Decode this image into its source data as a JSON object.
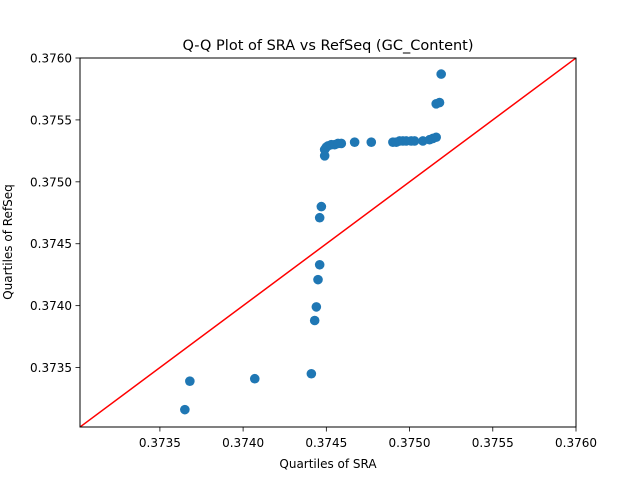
{
  "chart_data": {
    "type": "scatter",
    "title": "Q-Q Plot of SRA vs RefSeq (GC_Content)",
    "xlabel": "Quartiles of SRA",
    "ylabel": "Quartiles of RefSeq",
    "xlim": [
      0.37302,
      0.376
    ],
    "ylim": [
      0.37302,
      0.376
    ],
    "xticks": [
      0.3735,
      0.374,
      0.3745,
      0.375,
      0.3755,
      0.376
    ],
    "xtick_labels": [
      "0.3735",
      "0.3740",
      "0.3745",
      "0.3750",
      "0.3755",
      "0.3760"
    ],
    "yticks": [
      0.3735,
      0.374,
      0.3745,
      0.375,
      0.3755,
      0.376
    ],
    "ytick_labels": [
      "0.3735",
      "0.3740",
      "0.3745",
      "0.3750",
      "0.3755",
      "0.3760"
    ],
    "grid": false,
    "series": [
      {
        "color": "#1f77b4",
        "points": [
          [
            0.37365,
            0.37316
          ],
          [
            0.37368,
            0.37339
          ],
          [
            0.37407,
            0.37341
          ],
          [
            0.37441,
            0.37345
          ],
          [
            0.37443,
            0.37388
          ],
          [
            0.37444,
            0.37399
          ],
          [
            0.37445,
            0.37421
          ],
          [
            0.37446,
            0.37433
          ],
          [
            0.37446,
            0.37471
          ],
          [
            0.37447,
            0.3748
          ],
          [
            0.37449,
            0.37521
          ],
          [
            0.37449,
            0.37526
          ],
          [
            0.3745,
            0.37528
          ],
          [
            0.37451,
            0.37529
          ],
          [
            0.37453,
            0.3753
          ],
          [
            0.37455,
            0.3753
          ],
          [
            0.37457,
            0.37531
          ],
          [
            0.37459,
            0.37531
          ],
          [
            0.37467,
            0.37532
          ],
          [
            0.37477,
            0.37532
          ],
          [
            0.3749,
            0.37532
          ],
          [
            0.37492,
            0.37532
          ],
          [
            0.37494,
            0.37533
          ],
          [
            0.37496,
            0.37533
          ],
          [
            0.37498,
            0.37533
          ],
          [
            0.37501,
            0.37533
          ],
          [
            0.37503,
            0.37533
          ],
          [
            0.37508,
            0.37533
          ],
          [
            0.37512,
            0.37534
          ],
          [
            0.37514,
            0.37535
          ],
          [
            0.37516,
            0.37536
          ],
          [
            0.37516,
            0.37563
          ],
          [
            0.37518,
            0.37564
          ],
          [
            0.37519,
            0.37587
          ]
        ]
      },
      {
        "type": "line",
        "color": "#ff0000",
        "x": [
          0.37302,
          0.376
        ],
        "y": [
          0.37302,
          0.376
        ]
      }
    ]
  }
}
